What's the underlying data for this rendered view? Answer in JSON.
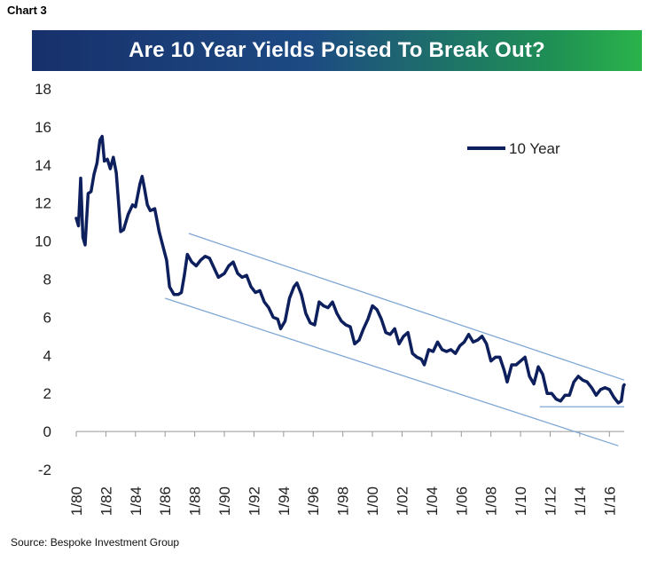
{
  "header": {
    "chart_label": "Chart 3"
  },
  "footer": {
    "source": "Source: Bespoke Investment Group"
  },
  "colors": {
    "series": "#0d1f5c",
    "trend": "#7fa7d6",
    "title_start": "#17306b",
    "title_end": "#2ab34a"
  },
  "chart_data": {
    "type": "line",
    "title": "Are 10 Year Yields Poised To Break Out?",
    "xlabel": "",
    "ylabel": "",
    "ylim": [
      -2,
      18
    ],
    "xlim": [
      1980.0,
      2017.0
    ],
    "yticks": [
      18,
      16,
      14,
      12,
      10,
      8,
      6,
      4,
      2,
      0,
      -2
    ],
    "xticks": [
      {
        "value": 1980,
        "label": "1/80"
      },
      {
        "value": 1982,
        "label": "1/82"
      },
      {
        "value": 1984,
        "label": "1/84"
      },
      {
        "value": 1986,
        "label": "1/86"
      },
      {
        "value": 1988,
        "label": "1/88"
      },
      {
        "value": 1990,
        "label": "1/90"
      },
      {
        "value": 1992,
        "label": "1/92"
      },
      {
        "value": 1994,
        "label": "1/94"
      },
      {
        "value": 1996,
        "label": "1/96"
      },
      {
        "value": 1998,
        "label": "1/98"
      },
      {
        "value": 2000,
        "label": "1/00"
      },
      {
        "value": 2002,
        "label": "1/02"
      },
      {
        "value": 2004,
        "label": "1/04"
      },
      {
        "value": 2006,
        "label": "1/06"
      },
      {
        "value": 2008,
        "label": "1/08"
      },
      {
        "value": 2010,
        "label": "1/10"
      },
      {
        "value": 2012,
        "label": "1/12"
      },
      {
        "value": 2014,
        "label": "1/14"
      },
      {
        "value": 2016,
        "label": "1/16"
      }
    ],
    "legend": {
      "position": "top-right"
    },
    "grid": false,
    "series": [
      {
        "name": "10 Year",
        "x": [
          1980.0,
          1980.15,
          1980.3,
          1980.45,
          1980.6,
          1980.8,
          1981.0,
          1981.2,
          1981.4,
          1981.6,
          1981.75,
          1981.9,
          1982.1,
          1982.3,
          1982.5,
          1982.7,
          1982.85,
          1983.0,
          1983.2,
          1983.5,
          1983.8,
          1984.0,
          1984.3,
          1984.45,
          1984.6,
          1984.8,
          1985.0,
          1985.3,
          1985.6,
          1985.9,
          1986.1,
          1986.3,
          1986.6,
          1986.9,
          1987.1,
          1987.3,
          1987.5,
          1987.8,
          1988.1,
          1988.4,
          1988.7,
          1989.0,
          1989.3,
          1989.6,
          1990.0,
          1990.3,
          1990.6,
          1990.9,
          1991.2,
          1991.5,
          1991.8,
          1992.1,
          1992.4,
          1992.7,
          1993.0,
          1993.3,
          1993.6,
          1993.8,
          1994.1,
          1994.4,
          1994.7,
          1994.9,
          1995.2,
          1995.5,
          1995.8,
          1996.1,
          1996.4,
          1996.7,
          1997.0,
          1997.3,
          1997.6,
          1997.9,
          1998.2,
          1998.5,
          1998.8,
          1999.1,
          1999.4,
          1999.7,
          2000.0,
          2000.3,
          2000.6,
          2000.9,
          2001.2,
          2001.5,
          2001.8,
          2002.1,
          2002.4,
          2002.7,
          2003.0,
          2003.3,
          2003.5,
          2003.8,
          2004.1,
          2004.4,
          2004.7,
          2005.0,
          2005.3,
          2005.6,
          2005.9,
          2006.2,
          2006.5,
          2006.8,
          2007.1,
          2007.4,
          2007.7,
          2008.0,
          2008.3,
          2008.6,
          2008.9,
          2009.1,
          2009.4,
          2009.7,
          2010.0,
          2010.3,
          2010.6,
          2010.9,
          2011.2,
          2011.5,
          2011.8,
          2012.1,
          2012.4,
          2012.7,
          2013.0,
          2013.3,
          2013.6,
          2013.9,
          2014.2,
          2014.5,
          2014.8,
          2015.1,
          2015.4,
          2015.7,
          2016.0,
          2016.3,
          2016.6,
          2016.8,
          2016.95,
          2017.0
        ],
        "values": [
          11.2,
          10.8,
          13.3,
          10.2,
          9.8,
          12.5,
          12.6,
          13.5,
          14.1,
          15.3,
          15.5,
          14.2,
          14.3,
          13.8,
          14.4,
          13.6,
          12.1,
          10.5,
          10.6,
          11.4,
          11.9,
          11.8,
          13.0,
          13.4,
          12.8,
          11.9,
          11.6,
          11.7,
          10.5,
          9.6,
          9.0,
          7.6,
          7.2,
          7.2,
          7.3,
          8.2,
          9.3,
          8.9,
          8.7,
          9.0,
          9.2,
          9.1,
          8.6,
          8.1,
          8.3,
          8.7,
          8.9,
          8.3,
          8.1,
          8.2,
          7.6,
          7.3,
          7.4,
          6.8,
          6.5,
          6.0,
          5.9,
          5.4,
          5.8,
          7.0,
          7.6,
          7.8,
          7.2,
          6.2,
          5.7,
          5.6,
          6.8,
          6.6,
          6.5,
          6.8,
          6.2,
          5.8,
          5.6,
          5.5,
          4.6,
          4.8,
          5.4,
          5.9,
          6.6,
          6.4,
          5.9,
          5.2,
          5.1,
          5.4,
          4.6,
          5.0,
          5.2,
          4.1,
          3.9,
          3.8,
          3.5,
          4.3,
          4.2,
          4.7,
          4.3,
          4.2,
          4.3,
          4.1,
          4.5,
          4.7,
          5.1,
          4.7,
          4.8,
          5.0,
          4.6,
          3.7,
          3.9,
          3.9,
          3.2,
          2.6,
          3.5,
          3.5,
          3.7,
          3.9,
          2.9,
          2.5,
          3.4,
          3.0,
          2.0,
          2.0,
          1.7,
          1.6,
          1.9,
          1.9,
          2.6,
          2.9,
          2.7,
          2.6,
          2.3,
          1.9,
          2.2,
          2.3,
          2.2,
          1.8,
          1.5,
          1.6,
          2.4,
          2.45
        ]
      }
    ],
    "trendlines": [
      {
        "x": [
          1987.6,
          2017.0
        ],
        "values": [
          10.4,
          2.7
        ]
      },
      {
        "x": [
          1986.0,
          2016.6
        ],
        "values": [
          7.0,
          -0.75
        ]
      },
      {
        "x": [
          2011.3,
          2017.0
        ],
        "values": [
          1.3,
          1.3
        ]
      }
    ]
  }
}
